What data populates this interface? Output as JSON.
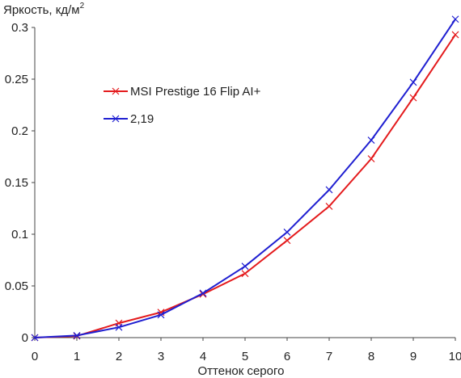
{
  "chart_data": {
    "type": "line",
    "title": "",
    "ylabel": "Яркость, кд/м²",
    "ylabel_main": "Яркость, кд/м",
    "ylabel_sup": "2",
    "xlabel": "Оттенок серого",
    "xlim": [
      0,
      10
    ],
    "ylim": [
      0,
      0.3
    ],
    "x_ticks": [
      "0",
      "1",
      "2",
      "3",
      "4",
      "5",
      "6",
      "7",
      "8",
      "9",
      "10"
    ],
    "y_ticks": [
      "0",
      "0.05",
      "0.1",
      "0.15",
      "0.2",
      "0.25",
      "0.3"
    ],
    "grid": false,
    "legend_position": "upper-left",
    "x": [
      0,
      1,
      2,
      3,
      4,
      5,
      6,
      7,
      8,
      9,
      10
    ],
    "series": [
      {
        "name": "MSI Prestige 16 Flip AI+",
        "color": "#e41a1c",
        "marker": "x",
        "values": [
          0,
          0.0015,
          0.014,
          0.0245,
          0.042,
          0.062,
          0.094,
          0.127,
          0.173,
          0.232,
          0.293
        ]
      },
      {
        "name": "2,19",
        "color": "#1f1fd1",
        "marker": "x",
        "values": [
          0,
          0.002,
          0.01,
          0.022,
          0.043,
          0.069,
          0.102,
          0.143,
          0.191,
          0.247,
          0.308
        ]
      }
    ]
  }
}
